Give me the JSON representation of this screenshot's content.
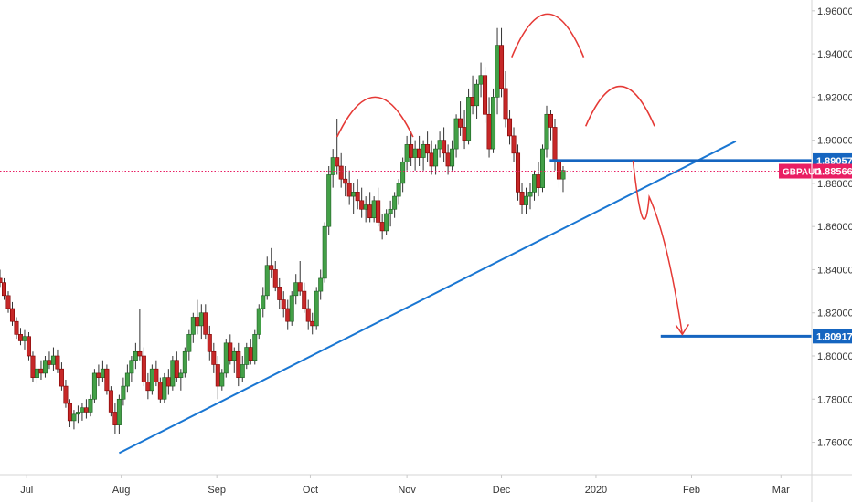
{
  "chart_data": {
    "type": "candlestick",
    "symbol": "GBPAUD",
    "ylim": [
      1.745,
      1.965
    ],
    "y_ticks": [
      "1.96000",
      "1.94000",
      "1.92000",
      "1.90000",
      "1.88000",
      "1.86000",
      "1.84000",
      "1.82000",
      "1.80000",
      "1.78000",
      "1.76000"
    ],
    "x_ticks": [
      {
        "label": "Jul",
        "t": 26
      },
      {
        "label": "Aug",
        "t": 118
      },
      {
        "label": "Sep",
        "t": 211
      },
      {
        "label": "Oct",
        "t": 302
      },
      {
        "label": "Nov",
        "t": 396
      },
      {
        "label": "Dec",
        "t": 488
      },
      {
        "label": "2020",
        "t": 580
      },
      {
        "label": "Feb",
        "t": 673
      },
      {
        "label": "Mar",
        "t": 760
      }
    ],
    "x_domain": [
      0,
      790
    ],
    "last_price": {
      "label": "GBPAUD",
      "value": "1.88566",
      "y": 1.88566,
      "color": "#e91e63"
    },
    "levels": [
      {
        "value": "1.89057",
        "y": 1.89057,
        "t_from": 535,
        "color": "#1565c0"
      },
      {
        "value": "1.80917",
        "y": 1.80917,
        "t_from": 643,
        "color": "#1565c0"
      }
    ],
    "trendline": {
      "from": {
        "t": 116,
        "y": 1.755
      },
      "to": {
        "t": 716,
        "y": 1.8995
      },
      "color": "#1976d2"
    },
    "annotations": {
      "arcs": [
        {
          "t_from": 328,
          "t_to": 402,
          "y_base": 1.9015,
          "y_peak": 1.92
        },
        {
          "t_from": 498,
          "t_to": 568,
          "y_base": 1.9385,
          "y_peak": 1.9585
        },
        {
          "t_from": 570,
          "t_to": 637,
          "y_base": 1.9065,
          "y_peak": 1.925
        }
      ],
      "arrow": {
        "points": [
          [
            616,
            1.8905
          ],
          [
            630,
            1.872
          ],
          [
            664,
            1.81
          ]
        ],
        "color": "#e53935"
      }
    },
    "colors": {
      "up": "#26a69a",
      "up_fill": "#43a047",
      "down": "#c62828",
      "wick": "#333333"
    },
    "candles": [
      [
        0,
        1.836,
        1.84,
        1.832,
        1.834
      ],
      [
        4,
        1.834,
        1.836,
        1.826,
        1.828
      ],
      [
        8,
        1.828,
        1.83,
        1.82,
        1.822
      ],
      [
        12,
        1.822,
        1.825,
        1.814,
        1.816
      ],
      [
        16,
        1.816,
        1.818,
        1.808,
        1.81
      ],
      [
        20,
        1.81,
        1.813,
        1.805,
        1.807
      ],
      [
        24,
        1.807,
        1.812,
        1.803,
        1.809
      ],
      [
        28,
        1.809,
        1.811,
        1.798,
        1.8
      ],
      [
        32,
        1.8,
        1.802,
        1.788,
        1.79
      ],
      [
        36,
        1.79,
        1.796,
        1.787,
        1.794
      ],
      [
        40,
        1.794,
        1.798,
        1.789,
        1.792
      ],
      [
        44,
        1.792,
        1.8,
        1.79,
        1.798
      ],
      [
        48,
        1.798,
        1.802,
        1.794,
        1.796
      ],
      [
        52,
        1.796,
        1.804,
        1.793,
        1.8
      ],
      [
        56,
        1.8,
        1.803,
        1.792,
        1.794
      ],
      [
        60,
        1.794,
        1.797,
        1.784,
        1.786
      ],
      [
        64,
        1.786,
        1.789,
        1.776,
        1.778
      ],
      [
        68,
        1.778,
        1.78,
        1.767,
        1.77
      ],
      [
        72,
        1.77,
        1.775,
        1.766,
        1.773
      ],
      [
        76,
        1.773,
        1.777,
        1.769,
        1.774
      ],
      [
        80,
        1.774,
        1.778,
        1.77,
        1.776
      ],
      [
        84,
        1.776,
        1.78,
        1.771,
        1.774
      ],
      [
        88,
        1.774,
        1.782,
        1.772,
        1.78
      ],
      [
        92,
        1.78,
        1.794,
        1.778,
        1.792
      ],
      [
        96,
        1.792,
        1.796,
        1.786,
        1.79
      ],
      [
        100,
        1.79,
        1.798,
        1.788,
        1.794
      ],
      [
        104,
        1.794,
        1.796,
        1.782,
        1.784
      ],
      [
        108,
        1.784,
        1.786,
        1.772,
        1.774
      ],
      [
        112,
        1.774,
        1.778,
        1.764,
        1.768
      ],
      [
        116,
        1.768,
        1.782,
        1.764,
        1.78
      ],
      [
        120,
        1.78,
        1.79,
        1.777,
        1.786
      ],
      [
        124,
        1.786,
        1.796,
        1.783,
        1.792
      ],
      [
        128,
        1.792,
        1.8,
        1.788,
        1.798
      ],
      [
        132,
        1.798,
        1.806,
        1.794,
        1.802
      ],
      [
        136,
        1.802,
        1.822,
        1.798,
        1.8
      ],
      [
        140,
        1.8,
        1.804,
        1.786,
        1.788
      ],
      [
        144,
        1.788,
        1.792,
        1.78,
        1.784
      ],
      [
        148,
        1.784,
        1.796,
        1.782,
        1.794
      ],
      [
        152,
        1.794,
        1.798,
        1.786,
        1.788
      ],
      [
        156,
        1.788,
        1.79,
        1.778,
        1.78
      ],
      [
        160,
        1.78,
        1.792,
        1.778,
        1.79
      ],
      [
        164,
        1.79,
        1.794,
        1.782,
        1.786
      ],
      [
        168,
        1.786,
        1.8,
        1.784,
        1.798
      ],
      [
        172,
        1.798,
        1.802,
        1.788,
        1.79
      ],
      [
        176,
        1.79,
        1.794,
        1.784,
        1.792
      ],
      [
        180,
        1.792,
        1.804,
        1.79,
        1.802
      ],
      [
        184,
        1.802,
        1.812,
        1.798,
        1.81
      ],
      [
        188,
        1.81,
        1.82,
        1.806,
        1.818
      ],
      [
        192,
        1.818,
        1.826,
        1.81,
        1.814
      ],
      [
        196,
        1.814,
        1.824,
        1.808,
        1.82
      ],
      [
        200,
        1.82,
        1.824,
        1.808,
        1.81
      ],
      [
        204,
        1.81,
        1.814,
        1.798,
        1.802
      ],
      [
        208,
        1.802,
        1.806,
        1.792,
        1.796
      ],
      [
        212,
        1.796,
        1.8,
        1.78,
        1.786
      ],
      [
        216,
        1.786,
        1.794,
        1.784,
        1.792
      ],
      [
        220,
        1.792,
        1.808,
        1.79,
        1.806
      ],
      [
        224,
        1.806,
        1.81,
        1.796,
        1.798
      ],
      [
        228,
        1.798,
        1.804,
        1.792,
        1.802
      ],
      [
        232,
        1.802,
        1.806,
        1.786,
        1.79
      ],
      [
        236,
        1.79,
        1.8,
        1.788,
        1.796
      ],
      [
        240,
        1.796,
        1.806,
        1.794,
        1.804
      ],
      [
        244,
        1.804,
        1.808,
        1.796,
        1.798
      ],
      [
        248,
        1.798,
        1.812,
        1.796,
        1.81
      ],
      [
        252,
        1.81,
        1.824,
        1.808,
        1.822
      ],
      [
        256,
        1.822,
        1.832,
        1.818,
        1.828
      ],
      [
        260,
        1.828,
        1.846,
        1.826,
        1.842
      ],
      [
        264,
        1.842,
        1.85,
        1.836,
        1.84
      ],
      [
        268,
        1.84,
        1.844,
        1.83,
        1.832
      ],
      [
        272,
        1.832,
        1.836,
        1.822,
        1.826
      ],
      [
        276,
        1.826,
        1.83,
        1.818,
        1.822
      ],
      [
        280,
        1.822,
        1.826,
        1.812,
        1.816
      ],
      [
        284,
        1.816,
        1.83,
        1.814,
        1.828
      ],
      [
        288,
        1.828,
        1.838,
        1.824,
        1.834
      ],
      [
        292,
        1.834,
        1.844,
        1.828,
        1.83
      ],
      [
        296,
        1.83,
        1.834,
        1.82,
        1.822
      ],
      [
        300,
        1.822,
        1.826,
        1.812,
        1.816
      ],
      [
        304,
        1.816,
        1.82,
        1.81,
        1.814
      ],
      [
        308,
        1.814,
        1.832,
        1.812,
        1.83
      ],
      [
        312,
        1.83,
        1.84,
        1.826,
        1.836
      ],
      [
        316,
        1.836,
        1.862,
        1.834,
        1.86
      ],
      [
        320,
        1.86,
        1.888,
        1.856,
        1.884
      ],
      [
        324,
        1.884,
        1.896,
        1.878,
        1.892
      ],
      [
        328,
        1.892,
        1.91,
        1.884,
        1.888
      ],
      [
        332,
        1.888,
        1.894,
        1.878,
        1.882
      ],
      [
        336,
        1.882,
        1.888,
        1.874,
        1.88
      ],
      [
        340,
        1.88,
        1.886,
        1.87,
        1.874
      ],
      [
        344,
        1.874,
        1.88,
        1.866,
        1.876
      ],
      [
        348,
        1.876,
        1.882,
        1.868,
        1.872
      ],
      [
        352,
        1.872,
        1.878,
        1.864,
        1.868
      ],
      [
        356,
        1.868,
        1.874,
        1.862,
        1.87
      ],
      [
        360,
        1.87,
        1.876,
        1.862,
        1.864
      ],
      [
        364,
        1.864,
        1.874,
        1.862,
        1.872
      ],
      [
        368,
        1.872,
        1.878,
        1.86,
        1.862
      ],
      [
        372,
        1.862,
        1.866,
        1.854,
        1.858
      ],
      [
        376,
        1.858,
        1.868,
        1.856,
        1.866
      ],
      [
        380,
        1.866,
        1.872,
        1.86,
        1.868
      ],
      [
        384,
        1.868,
        1.876,
        1.864,
        1.874
      ],
      [
        388,
        1.874,
        1.882,
        1.87,
        1.88
      ],
      [
        392,
        1.88,
        1.892,
        1.876,
        1.89
      ],
      [
        396,
        1.89,
        1.902,
        1.886,
        1.898
      ],
      [
        400,
        1.898,
        1.904,
        1.888,
        1.892
      ],
      [
        404,
        1.892,
        1.9,
        1.886,
        1.896
      ],
      [
        408,
        1.896,
        1.902,
        1.888,
        1.892
      ],
      [
        412,
        1.892,
        1.9,
        1.886,
        1.898
      ],
      [
        416,
        1.898,
        1.904,
        1.89,
        1.894
      ],
      [
        420,
        1.894,
        1.9,
        1.884,
        1.888
      ],
      [
        424,
        1.888,
        1.898,
        1.884,
        1.896
      ],
      [
        428,
        1.896,
        1.904,
        1.892,
        1.9
      ],
      [
        432,
        1.9,
        1.906,
        1.89,
        1.894
      ],
      [
        436,
        1.894,
        1.898,
        1.884,
        1.888
      ],
      [
        440,
        1.888,
        1.9,
        1.886,
        1.896
      ],
      [
        444,
        1.896,
        1.912,
        1.892,
        1.91
      ],
      [
        448,
        1.91,
        1.918,
        1.902,
        1.906
      ],
      [
        452,
        1.906,
        1.914,
        1.896,
        1.9
      ],
      [
        456,
        1.9,
        1.924,
        1.898,
        1.92
      ],
      [
        460,
        1.92,
        1.93,
        1.912,
        1.916
      ],
      [
        464,
        1.916,
        1.928,
        1.91,
        1.926
      ],
      [
        468,
        1.926,
        1.936,
        1.92,
        1.93
      ],
      [
        472,
        1.93,
        1.934,
        1.908,
        1.912
      ],
      [
        476,
        1.912,
        1.92,
        1.892,
        1.896
      ],
      [
        480,
        1.896,
        1.924,
        1.894,
        1.92
      ],
      [
        484,
        1.92,
        1.952,
        1.912,
        1.944
      ],
      [
        488,
        1.944,
        1.952,
        1.92,
        1.924
      ],
      [
        492,
        1.924,
        1.932,
        1.906,
        1.91
      ],
      [
        496,
        1.91,
        1.914,
        1.898,
        1.902
      ],
      [
        500,
        1.902,
        1.906,
        1.89,
        1.894
      ],
      [
        504,
        1.894,
        1.898,
        1.872,
        1.876
      ],
      [
        508,
        1.876,
        1.88,
        1.866,
        1.87
      ],
      [
        512,
        1.87,
        1.878,
        1.866,
        1.874
      ],
      [
        516,
        1.874,
        1.88,
        1.868,
        1.876
      ],
      [
        520,
        1.876,
        1.886,
        1.872,
        1.884
      ],
      [
        524,
        1.884,
        1.89,
        1.874,
        1.878
      ],
      [
        528,
        1.878,
        1.898,
        1.876,
        1.896
      ],
      [
        532,
        1.896,
        1.916,
        1.892,
        1.912
      ],
      [
        536,
        1.912,
        1.914,
        1.9,
        1.906
      ],
      [
        540,
        1.906,
        1.91,
        1.886,
        1.89
      ],
      [
        544,
        1.89,
        1.892,
        1.878,
        1.882
      ],
      [
        548,
        1.882,
        1.888,
        1.876,
        1.886
      ]
    ]
  }
}
